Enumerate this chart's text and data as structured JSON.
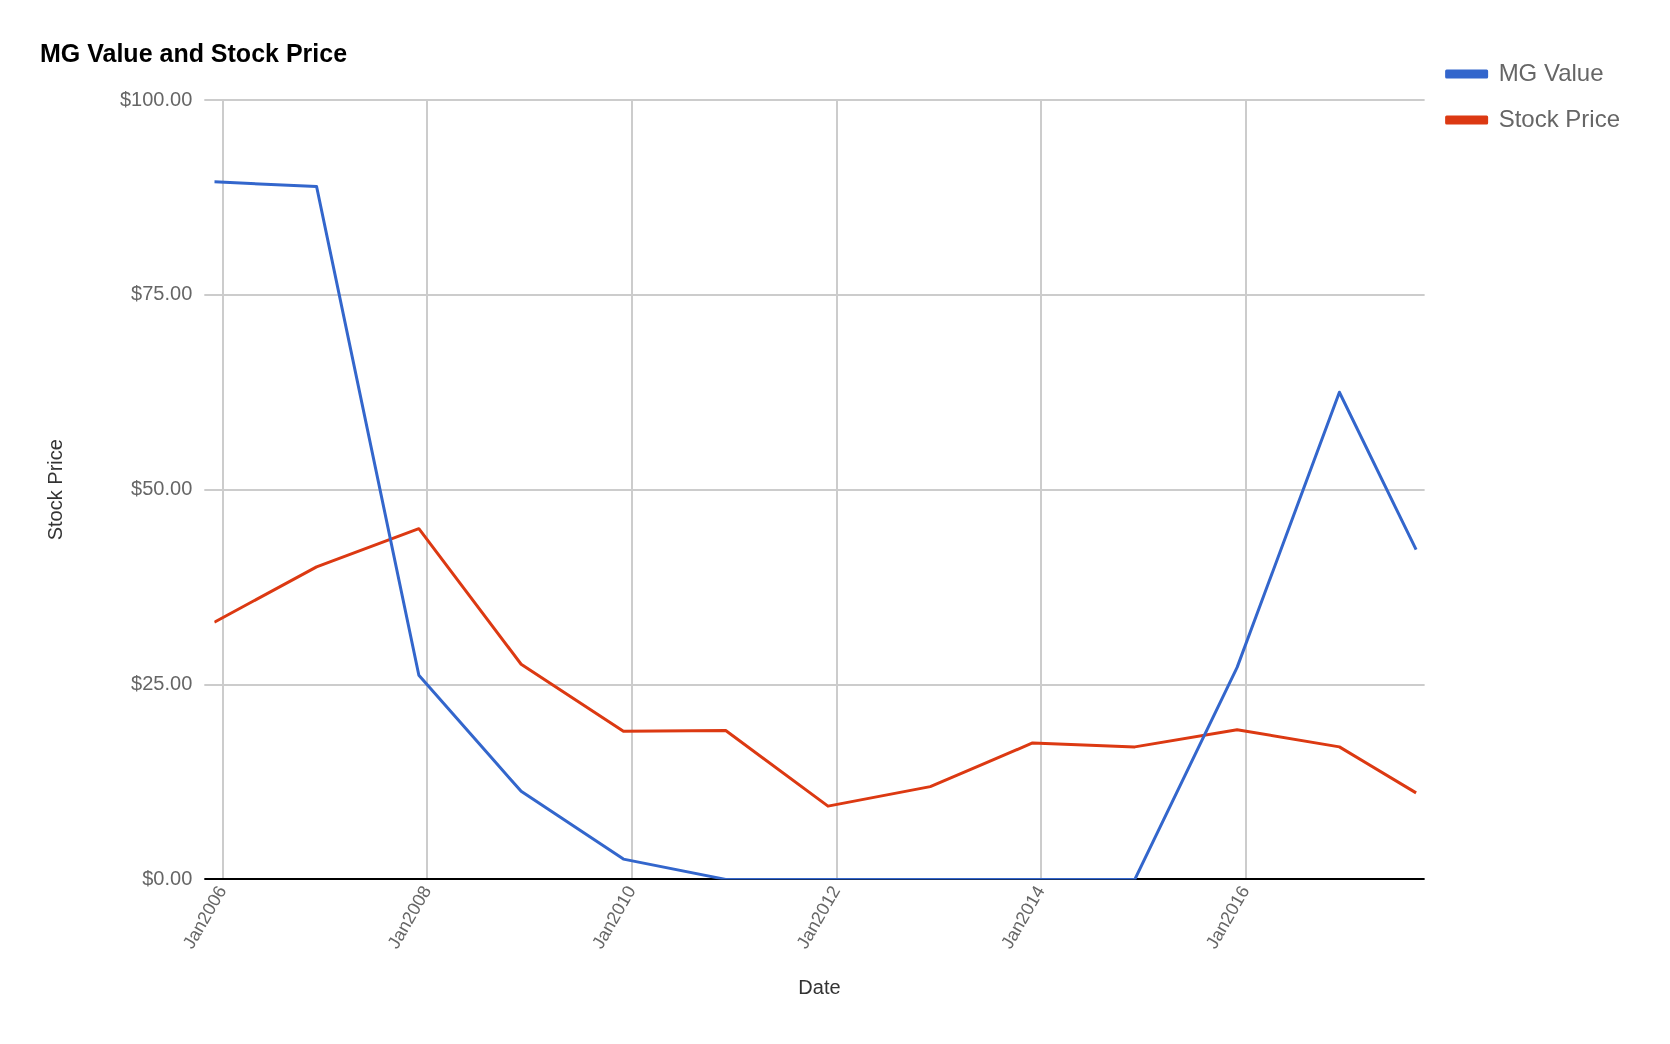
{
  "chart_data": {
    "type": "line",
    "title": "MG Value and Stock Price",
    "xlabel": "Date",
    "ylabel": "Stock Price",
    "x": [
      "2005-12",
      "2006-12",
      "2007-12",
      "2008-12",
      "2009-12",
      "2010-12",
      "2011-12",
      "2012-12",
      "2013-12",
      "2014-12",
      "2015-12",
      "2016-12",
      "2017-09"
    ],
    "series": [
      {
        "name": "MG Value",
        "color": "#3366cc",
        "values": [
          89.5,
          88.9,
          26.2,
          11.3,
          2.6,
          0,
          0,
          0,
          0,
          0,
          27.2,
          62.5,
          42.3
        ]
      },
      {
        "name": "Stock Price",
        "color": "#dc3912",
        "values": [
          33,
          40.1,
          45,
          27.6,
          19,
          19.1,
          9.4,
          11.9,
          17.5,
          17,
          19.2,
          17,
          11.1
        ]
      }
    ],
    "xlim": [
      "2005-12",
      "2017-10"
    ],
    "xticks": [
      {
        "value": "2006-01",
        "label": "Jan2006"
      },
      {
        "value": "2008-01",
        "label": "Jan2008"
      },
      {
        "value": "2010-01",
        "label": "Jan2010"
      },
      {
        "value": "2012-01",
        "label": "Jan2012"
      },
      {
        "value": "2014-01",
        "label": "Jan2014"
      },
      {
        "value": "2016-01",
        "label": "Jan2016"
      }
    ],
    "ylim": [
      0,
      100
    ],
    "yticks": [
      {
        "value": 0,
        "label": "$0.00"
      },
      {
        "value": 25,
        "label": "$25.00"
      },
      {
        "value": 50,
        "label": "$50.00"
      },
      {
        "value": 75,
        "label": "$75.00"
      },
      {
        "value": 100,
        "label": "$100.00"
      }
    ],
    "grid": true,
    "legend": "top right",
    "marker": "none",
    "line_style": "solid"
  }
}
